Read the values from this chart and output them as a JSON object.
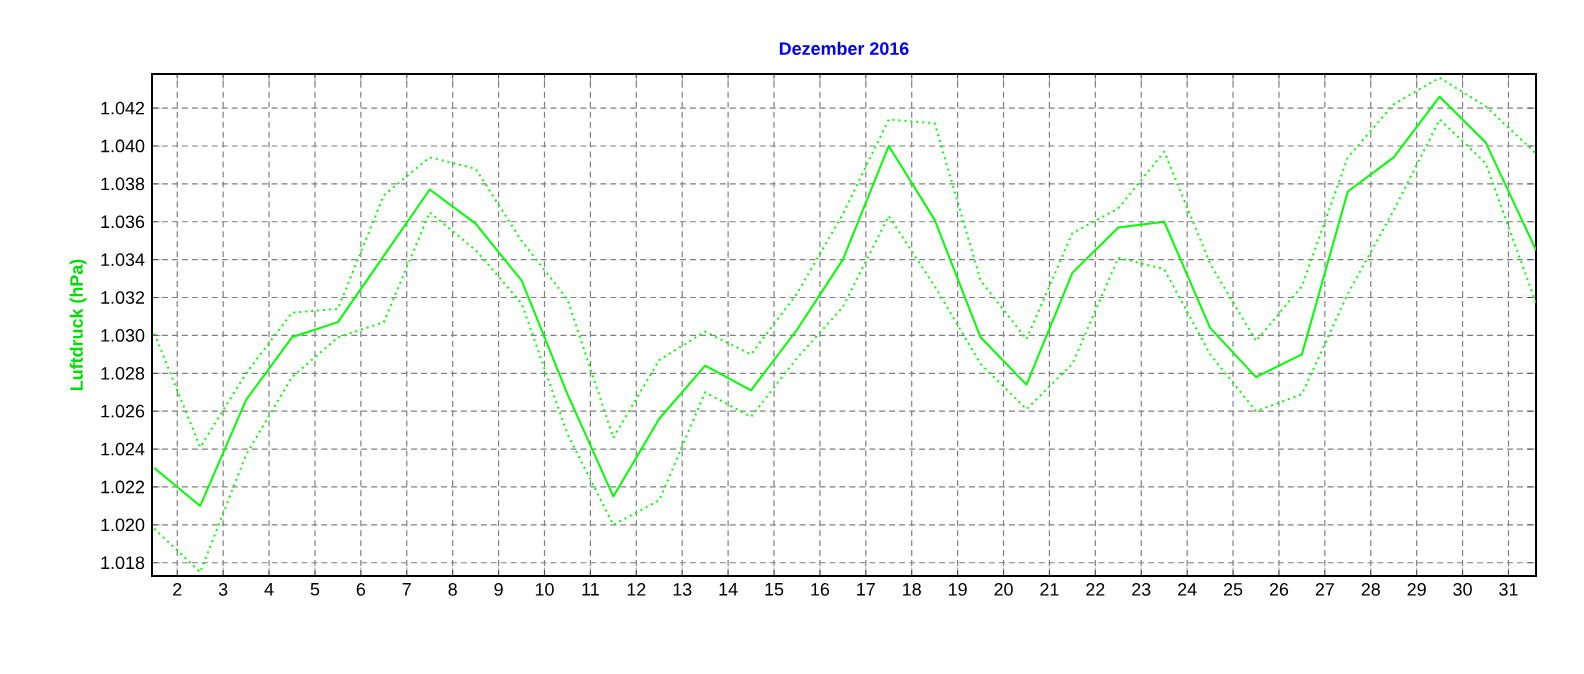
{
  "chart_data": {
    "type": "line",
    "title": "Dezember 2016",
    "ylabel": "Luftdruck (hPa)",
    "x": [
      1.5,
      2.5,
      3.5,
      4.5,
      5.5,
      6.5,
      7.5,
      8.5,
      9.5,
      10.5,
      11.5,
      12.5,
      13.5,
      14.5,
      15.5,
      16.5,
      17.5,
      18.5,
      19.5,
      20.5,
      21.5,
      22.5,
      23.5,
      24.5,
      25.5,
      26.5,
      27.5,
      28.5,
      29.5,
      30.5,
      31.6
    ],
    "series": [
      {
        "color": "#00ff00",
        "line_style": "dotted",
        "values": [
          1.0301,
          1.0241,
          1.028,
          1.0312,
          1.0314,
          1.0374,
          1.0394,
          1.0388,
          1.035,
          1.0319,
          1.0246,
          1.0287,
          1.0302,
          1.029,
          1.0322,
          1.0364,
          1.0414,
          1.0412,
          1.0329,
          1.0298,
          1.0354,
          1.0367,
          1.0397,
          1.0338,
          1.0297,
          1.0326,
          1.0394,
          1.0422,
          1.0436,
          1.0421,
          1.0396
        ]
      },
      {
        "color": "#00ff00",
        "line_style": "solid",
        "values": [
          1.023,
          1.021,
          1.0266,
          1.0299,
          1.0307,
          1.0342,
          1.0377,
          1.0359,
          1.0329,
          1.0269,
          1.0215,
          1.0256,
          1.0284,
          1.0271,
          1.0303,
          1.034,
          1.04,
          1.0361,
          1.0299,
          1.0274,
          1.0333,
          1.0357,
          1.036,
          1.0304,
          1.0278,
          1.029,
          1.0376,
          1.0394,
          1.0426,
          1.0402,
          1.0345
        ]
      },
      {
        "color": "#00ff00",
        "line_style": "dotted",
        "values": [
          1.0198,
          1.0175,
          1.0237,
          1.0278,
          1.0299,
          1.0307,
          1.0365,
          1.0345,
          1.0317,
          1.0248,
          1.02,
          1.0213,
          1.027,
          1.0257,
          1.0288,
          1.0315,
          1.0363,
          1.0326,
          1.0285,
          1.0261,
          1.0285,
          1.0341,
          1.0335,
          1.029,
          1.026,
          1.0269,
          1.0322,
          1.0366,
          1.0414,
          1.0391,
          1.0317
        ]
      }
    ],
    "xlim": [
      1.45,
      31.6
    ],
    "ylim": [
      1.0173,
      1.0438
    ],
    "xticks": [
      2,
      3,
      4,
      5,
      6,
      7,
      8,
      9,
      10,
      11,
      12,
      13,
      14,
      15,
      16,
      17,
      18,
      19,
      20,
      21,
      22,
      23,
      24,
      25,
      26,
      27,
      28,
      29,
      30,
      31
    ],
    "yticks": [
      {
        "value": 1.018,
        "label": "1.018"
      },
      {
        "value": 1.02,
        "label": "1.020"
      },
      {
        "value": 1.022,
        "label": "1.022"
      },
      {
        "value": 1.024,
        "label": "1.024"
      },
      {
        "value": 1.026,
        "label": "1.026"
      },
      {
        "value": 1.028,
        "label": "1.028"
      },
      {
        "value": 1.03,
        "label": "1.030"
      },
      {
        "value": 1.032,
        "label": "1.032"
      },
      {
        "value": 1.034,
        "label": "1.034"
      },
      {
        "value": 1.036,
        "label": "1.036"
      },
      {
        "value": 1.038,
        "label": "1.038"
      },
      {
        "value": 1.04,
        "label": "1.040"
      },
      {
        "value": 1.042,
        "label": "1.042"
      }
    ],
    "grid": true,
    "marker": "none"
  }
}
